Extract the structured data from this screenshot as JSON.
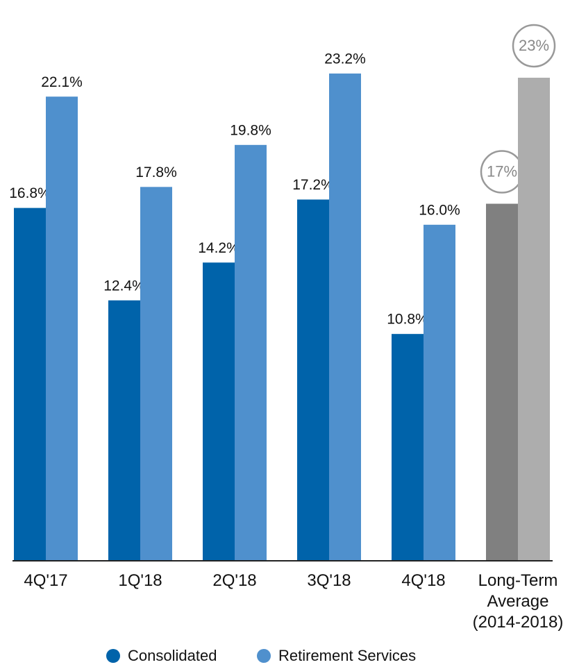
{
  "chart_data": {
    "type": "bar",
    "categories": [
      "4Q'17",
      "1Q'18",
      "2Q'18",
      "3Q'18",
      "4Q'18",
      "Long-Term Average (2014-2018)"
    ],
    "series": [
      {
        "name": "Consolidated",
        "color": "#0063aa",
        "colors": [
          "#0063aa",
          "#0063aa",
          "#0063aa",
          "#0063aa",
          "#0063aa",
          "#808080"
        ],
        "values": [
          16.8,
          12.4,
          14.2,
          17.2,
          10.8,
          17
        ],
        "value_labels": [
          "16.8%",
          "12.4%",
          "14.2%",
          "17.2%",
          "10.8%",
          "17%"
        ]
      },
      {
        "name": "Retirement Services",
        "color": "#4f90cd",
        "colors": [
          "#4f90cd",
          "#4f90cd",
          "#4f90cd",
          "#4f90cd",
          "#4f90cd",
          "#adadad"
        ],
        "values": [
          22.1,
          17.8,
          19.8,
          23.2,
          16.0,
          23
        ],
        "value_labels": [
          "22.1%",
          "17.8%",
          "19.8%",
          "23.2%",
          "16.0%",
          "23%"
        ]
      }
    ],
    "circled_categories": [
      5
    ],
    "ylim": [
      0,
      26.7
    ],
    "legend": "bottom"
  }
}
